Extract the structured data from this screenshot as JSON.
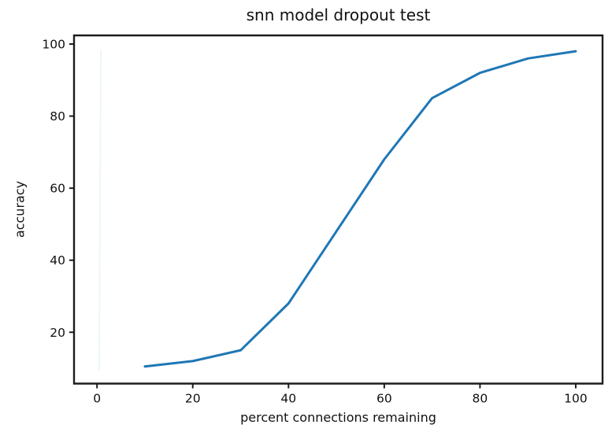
{
  "chart_data": {
    "type": "line",
    "title": "snn model dropout test",
    "xlabel": "percent connections remaining",
    "ylabel": "accuracy",
    "x": [
      10,
      20,
      30,
      40,
      50,
      60,
      70,
      80,
      90,
      100
    ],
    "y": [
      10.5,
      12,
      15,
      28,
      48,
      68,
      85,
      92,
      96,
      98
    ],
    "xticks": [
      0,
      20,
      40,
      60,
      80,
      100
    ],
    "yticks": [
      20,
      40,
      60,
      80,
      100
    ],
    "xlim": [
      -4.8,
      105.6
    ],
    "ylim": [
      5.75,
      102.4
    ],
    "grid": false,
    "legend_position": "none",
    "line_color": "#1f77b4",
    "line_width": 3,
    "axis_color": "#1c1c1c",
    "text_color": "#111111",
    "background_color": "#ffffff",
    "faint_secondary_line": {
      "x": [
        0.8,
        0.45
      ],
      "y": [
        98,
        9.6
      ],
      "color": "#edf6f6"
    }
  }
}
